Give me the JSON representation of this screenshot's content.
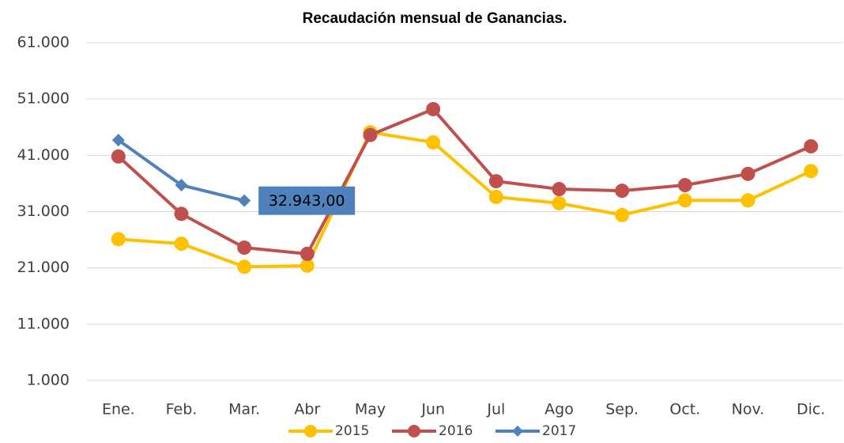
{
  "chart_data": {
    "type": "line",
    "title": "Recaudación mensual de Ganancias.",
    "categories": [
      "Ene.",
      "Feb.",
      "Mar.",
      "Abr",
      "May",
      "Jun",
      "Jul",
      "Ago",
      "Sep.",
      "Oct.",
      "Nov.",
      "Dic."
    ],
    "series": [
      {
        "name": "2015",
        "color": "#FFC000",
        "marker": "circle",
        "values": [
          26100,
          25300,
          21200,
          21400,
          45100,
          43300,
          33600,
          32500,
          30400,
          33000,
          33000,
          38200
        ]
      },
      {
        "name": "2016",
        "color": "#C0504D",
        "marker": "circle",
        "values": [
          40800,
          30600,
          24600,
          23500,
          44600,
          49200,
          36400,
          35000,
          34700,
          35700,
          37700,
          42600
        ]
      },
      {
        "name": "2017",
        "color": "#4F81BD",
        "marker": "diamond",
        "values": [
          43700,
          35700,
          32943,
          null,
          null,
          null,
          null,
          null,
          null,
          null,
          null,
          null
        ],
        "value_labels": [
          null,
          null,
          "32.943,00",
          null,
          null,
          null,
          null,
          null,
          null,
          null,
          null,
          null
        ]
      }
    ],
    "ylim": [
      1000,
      61000
    ],
    "yticks": [
      {
        "value": 1000,
        "label": "1.000"
      },
      {
        "value": 11000,
        "label": "11.000"
      },
      {
        "value": 21000,
        "label": "21.000"
      },
      {
        "value": 31000,
        "label": "31.000"
      },
      {
        "value": 41000,
        "label": "41.000"
      },
      {
        "value": 51000,
        "label": "51.000"
      },
      {
        "value": 61000,
        "label": "61.000"
      }
    ],
    "grid": true,
    "legend": "bottom"
  }
}
